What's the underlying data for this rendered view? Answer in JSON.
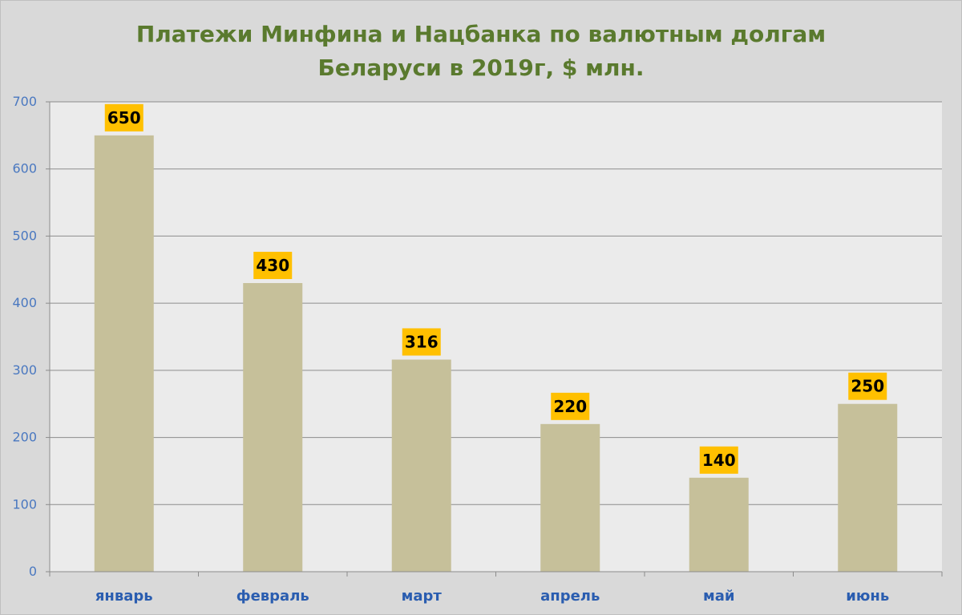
{
  "chart_data": {
    "type": "bar",
    "title_lines": [
      "Платежи Минфина и Нацбанка по валютным долгам",
      "Беларуси в 2019г, $ млн."
    ],
    "categories": [
      "январь",
      "февраль",
      "март",
      "апрель",
      "май",
      "июнь"
    ],
    "values": [
      650,
      430,
      316,
      220,
      140,
      250
    ],
    "data_labels": [
      "650",
      "430",
      "316",
      "220",
      "140",
      "250"
    ],
    "y_ticks": [
      0,
      100,
      200,
      300,
      400,
      500,
      600,
      700
    ],
    "ylim": [
      0,
      700
    ],
    "grid": true,
    "legend": "none",
    "colors": {
      "bar": "#c6c09a",
      "label_bg": "#ffc000",
      "plot_bg": "#ebebeb",
      "grid": "#8c8c8c",
      "title": "#5a7a2e",
      "axis_text": "#4a78c0",
      "category_text": "#2a5db0"
    }
  }
}
